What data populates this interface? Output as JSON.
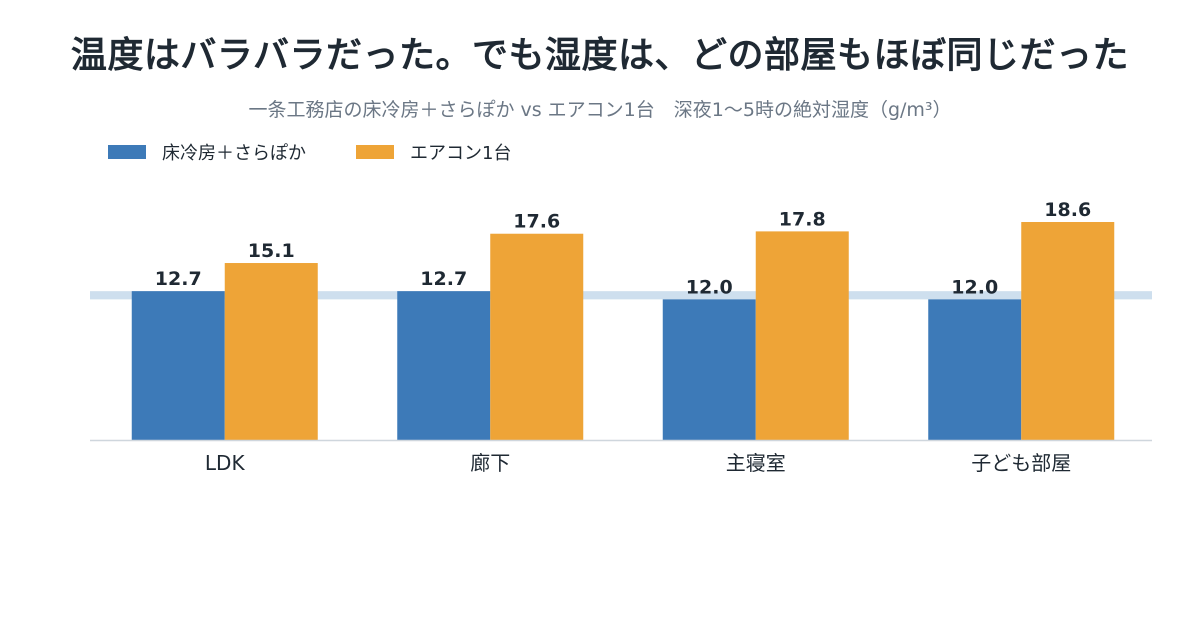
{
  "title": "温度はバラバラだった。でも湿度は、どの部屋もほぼ同じだった",
  "subtitle": "一条工務店の床冷房＋さらぽか vs エアコン1台　深夜1〜5時の絶対湿度（g/m³）",
  "legend": [
    {
      "label": "床冷房＋さらぽか",
      "color": "#3d7ab8"
    },
    {
      "label": "エアコン1台",
      "color": "#eea437"
    }
  ],
  "chart_data": {
    "type": "bar",
    "categories": [
      "LDK",
      "廊下",
      "主寝室",
      "子ども部屋"
    ],
    "series": [
      {
        "name": "床冷房＋さらぽか",
        "values": [
          12.7,
          12.7,
          12.0,
          12.0
        ],
        "color": "#3d7ab8"
      },
      {
        "name": "エアコン1台",
        "values": [
          15.1,
          17.6,
          17.8,
          18.6
        ],
        "color": "#eea437"
      }
    ],
    "reference_band": {
      "from": 12.0,
      "to": 12.7,
      "color": "#c9dcec"
    },
    "ylim": [
      0,
      20
    ],
    "grid": false,
    "legend_position": "top-left"
  }
}
